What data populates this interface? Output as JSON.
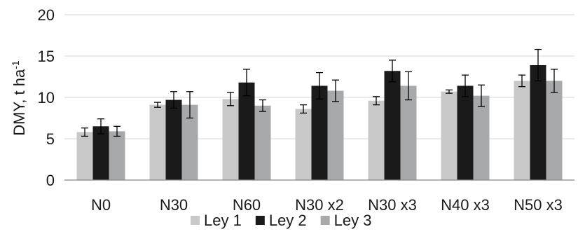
{
  "chart_data": {
    "type": "bar",
    "title": "",
    "xlabel": "",
    "ylabel": "DMY, t ha",
    "ylabel_superscript": "-1",
    "ylim": [
      0,
      20
    ],
    "yticks": [
      "0",
      "5",
      "10",
      "15",
      "20"
    ],
    "grid": "horizontal",
    "legend_position": "bottom",
    "categories": [
      "N0",
      "N30",
      "N60",
      "N30 x2",
      "N30 x3",
      "N40 x3",
      "N50 x3"
    ],
    "series": [
      {
        "name": "Ley 1",
        "color": "#c8c8c8",
        "values": [
          5.8,
          9.1,
          9.8,
          8.6,
          9.6,
          10.7,
          12.0
        ],
        "errors": [
          0.5,
          0.3,
          0.8,
          0.5,
          0.5,
          0.2,
          0.7
        ]
      },
      {
        "name": "Ley 2",
        "color": "#1a1a1a",
        "values": [
          6.5,
          9.7,
          11.8,
          11.4,
          13.2,
          11.4,
          13.9
        ],
        "errors": [
          0.9,
          1.0,
          1.6,
          1.6,
          1.3,
          1.3,
          1.9
        ]
      },
      {
        "name": "Ley 3",
        "color": "#a8a9ab",
        "values": [
          5.9,
          9.1,
          9.0,
          10.8,
          11.4,
          10.2,
          12.0
        ],
        "errors": [
          0.6,
          1.6,
          0.7,
          1.3,
          1.7,
          1.3,
          1.4
        ]
      }
    ]
  }
}
